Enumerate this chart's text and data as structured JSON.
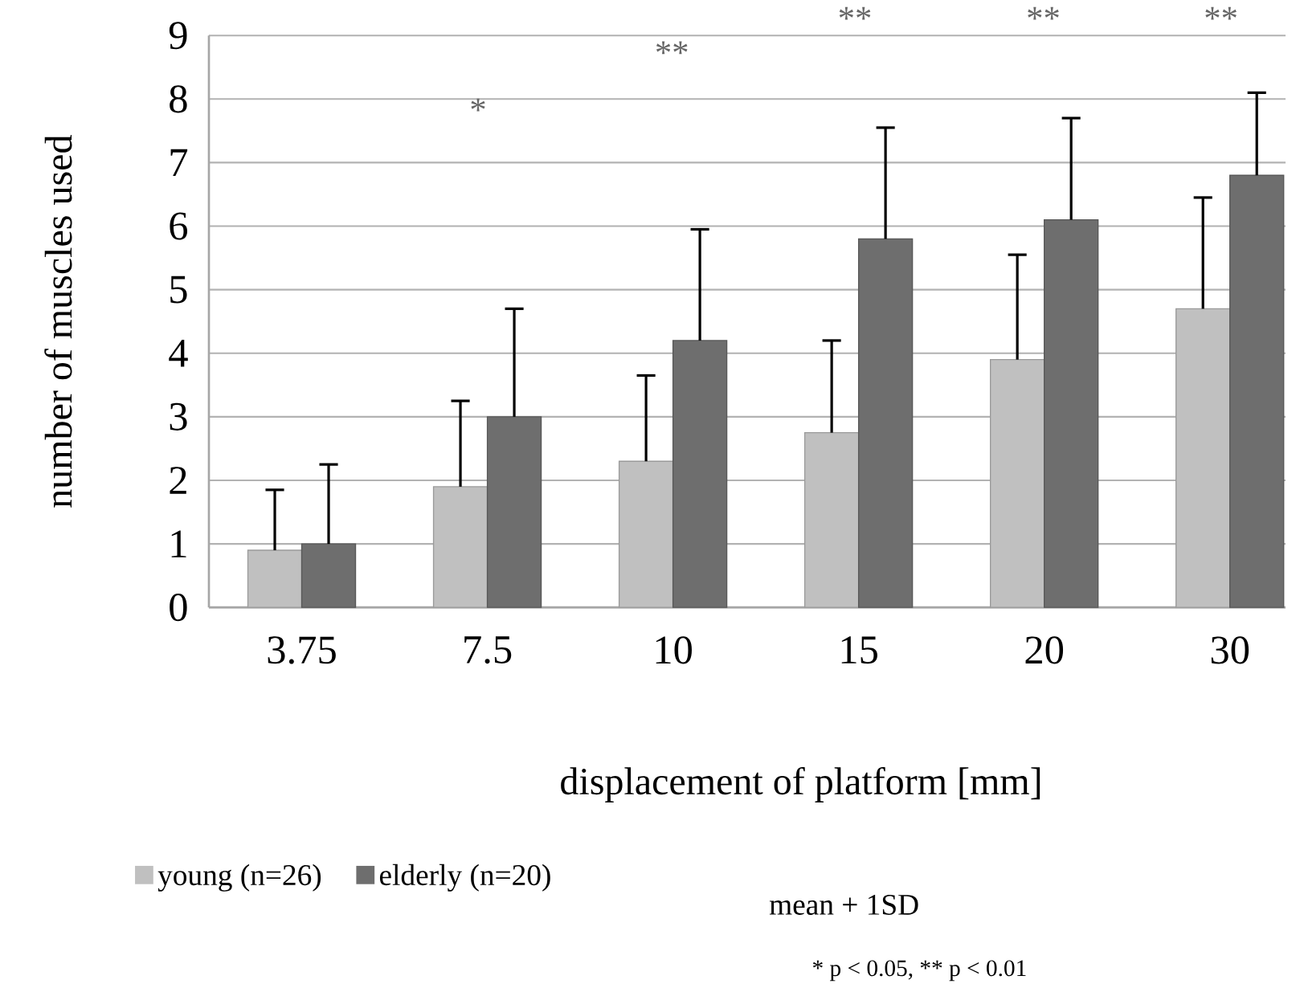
{
  "chart_data": {
    "type": "bar",
    "ylabel": "number of muscles used",
    "xlabel": "displacement of platform [mm]",
    "categories": [
      "3.75",
      "7.5",
      "10",
      "15",
      "20",
      "30"
    ],
    "series": [
      {
        "name": "young (n=26)",
        "color": "#c0c0c0",
        "values": [
          0.9,
          1.9,
          2.3,
          2.75,
          3.9,
          4.7
        ],
        "errors": [
          [
            0.9,
            1.85
          ],
          [
            1.9,
            3.25
          ],
          [
            2.3,
            3.65
          ],
          [
            2.75,
            4.2
          ],
          [
            3.9,
            5.55
          ],
          [
            4.7,
            6.45
          ]
        ]
      },
      {
        "name": "elderly (n=20)",
        "color": "#6e6e6e",
        "values": [
          1.0,
          3.0,
          4.2,
          5.8,
          6.1,
          6.8
        ],
        "errors": [
          [
            1.0,
            2.25
          ],
          [
            3.0,
            4.7
          ],
          [
            4.2,
            5.95
          ],
          [
            5.8,
            7.55
          ],
          [
            6.1,
            7.7
          ],
          [
            6.8,
            8.1
          ]
        ]
      }
    ],
    "ylim": [
      0,
      9
    ],
    "yticks": [
      0,
      1,
      2,
      3,
      4,
      5,
      6,
      7,
      8,
      9
    ],
    "grid": "y",
    "legend": "bottom",
    "annotations": [
      "*",
      "**",
      "**",
      "**",
      "**",
      "mean + 1SD",
      "* p < 0.05, ** p < 0.01"
    ]
  }
}
